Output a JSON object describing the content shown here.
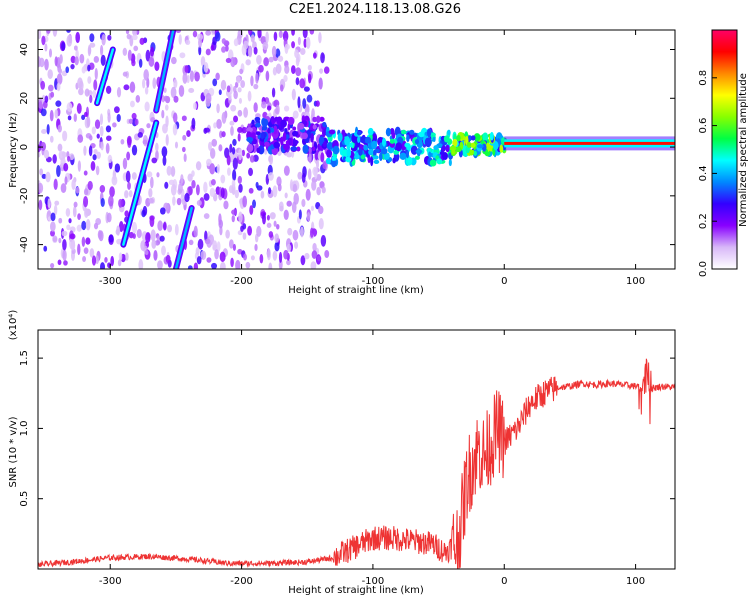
{
  "title": "C2E1.2024.118.13.08.G26",
  "chart_data": [
    {
      "type": "heatmap",
      "xlabel": "Height of straight line (km)",
      "ylabel": "Frequency (Hz)",
      "xlim": [
        -355,
        130
      ],
      "ylim": [
        -50,
        48
      ],
      "xticks": [
        -300,
        -200,
        -100,
        0,
        100
      ],
      "xtick_labels": [
        "-300",
        "-200",
        "-100",
        "0",
        "100"
      ],
      "yticks": [
        -40,
        -20,
        0,
        20,
        40
      ],
      "ytick_labels": [
        "-40",
        "-20",
        "0",
        "20",
        "40"
      ],
      "colorbar": {
        "label": "Normalized spectral amplitude",
        "ticks": [
          0.0,
          0.2,
          0.4,
          0.6,
          0.8
        ],
        "tick_labels": [
          "0.0",
          "0.2",
          "0.4",
          "0.6",
          "0.8"
        ],
        "range": [
          0,
          1
        ],
        "colormap": [
          "#ffffff",
          "#d8b8f8",
          "#8800ff",
          "#3300ff",
          "#0088ff",
          "#00ffff",
          "#00ff44",
          "#88ff00",
          "#ffff00",
          "#ff8800",
          "#ff0000",
          "#ff0066"
        ]
      },
      "features": [
        {
          "name": "noise region",
          "x_range": [
            -355,
            -135
          ],
          "y_range": [
            -50,
            48
          ],
          "level": 0.15
        },
        {
          "name": "diagonal streak",
          "x_start": -310,
          "y_start": 18,
          "x_end": -298,
          "y_end": 40,
          "level": 0.45
        },
        {
          "name": "diagonal streak",
          "x_start": -290,
          "y_start": -40,
          "x_end": -265,
          "y_end": 10,
          "level": 0.45
        },
        {
          "name": "diagonal streak",
          "x_start": -265,
          "y_start": 15,
          "x_end": -252,
          "y_end": 48,
          "level": 0.4
        },
        {
          "name": "diagonal streak",
          "x_start": -250,
          "y_start": -50,
          "x_end": -238,
          "y_end": -25,
          "level": 0.4
        },
        {
          "name": "signal band",
          "x_range": [
            -195,
            -135
          ],
          "y_center": 5,
          "level": 0.3
        },
        {
          "name": "signal band",
          "x_range": [
            -135,
            -40
          ],
          "y_center": 0,
          "level": 0.45
        },
        {
          "name": "signal band",
          "x_range": [
            -40,
            0
          ],
          "y_center": 1,
          "level": 0.6
        },
        {
          "name": "signal band",
          "x_range": [
            0,
            130
          ],
          "y_center": 1.5,
          "level": 0.9
        }
      ]
    },
    {
      "type": "line",
      "xlabel": "Height of straight line (km)",
      "ylabel": "SNR (10 * v/v)",
      "ylabel_multiplier": "(x10⁴)",
      "xlim": [
        -355,
        130
      ],
      "ylim": [
        0,
        1.7
      ],
      "xticks": [
        -300,
        -200,
        -100,
        0,
        100
      ],
      "xtick_labels": [
        "-300",
        "-200",
        "-100",
        "0",
        "100"
      ],
      "yticks": [
        0.5,
        1.0,
        1.5
      ],
      "ytick_labels": [
        "0.5",
        "1.0",
        "1.5"
      ],
      "color": "#ee3333",
      "series": [
        {
          "x": [
            -355,
            -330,
            -300,
            -270,
            -240,
            -210,
            -180,
            -150,
            -130,
            -115,
            -100,
            -85,
            -70,
            -55,
            -45,
            -35,
            -28,
            -20,
            -15,
            -10,
            -5,
            0,
            10,
            20,
            30,
            40,
            50,
            60,
            70,
            80,
            90,
            100,
            105,
            108,
            110,
            120,
            130
          ],
          "y": [
            0.03,
            0.05,
            0.08,
            0.09,
            0.07,
            0.04,
            0.04,
            0.05,
            0.08,
            0.15,
            0.22,
            0.22,
            0.2,
            0.18,
            0.12,
            0.2,
            0.65,
            0.85,
            0.8,
            0.9,
            1.0,
            0.9,
            1.0,
            1.18,
            1.25,
            1.29,
            1.3,
            1.32,
            1.31,
            1.32,
            1.31,
            1.3,
            1.28,
            1.5,
            1.28,
            1.3,
            1.29
          ]
        }
      ]
    }
  ]
}
